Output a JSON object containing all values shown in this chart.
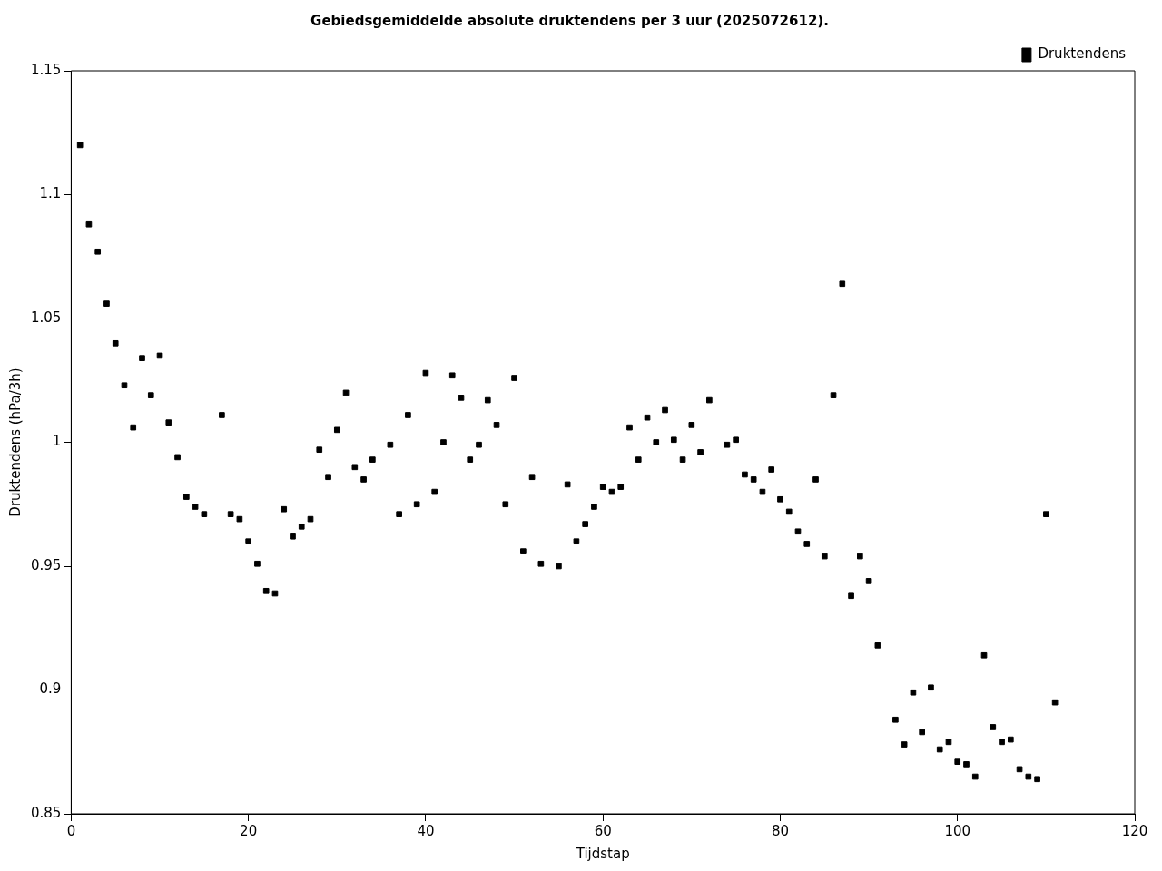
{
  "chart_data": {
    "type": "scatter",
    "title": "Gebiedsgemiddelde absolute druktendens per 3 uur (2025072612).",
    "xlabel": "Tijdstap",
    "ylabel": "Druktendens (hPa/3h)",
    "x": [
      1,
      2,
      3,
      4,
      5,
      6,
      7,
      8,
      9,
      10,
      11,
      12,
      13,
      14,
      15,
      17,
      18,
      19,
      20,
      21,
      22,
      23,
      24,
      25,
      26,
      27,
      28,
      29,
      30,
      31,
      32,
      33,
      34,
      36,
      37,
      38,
      39,
      40,
      41,
      42,
      43,
      44,
      45,
      46,
      47,
      48,
      49,
      50,
      51,
      52,
      53,
      55,
      56,
      57,
      58,
      59,
      60,
      61,
      62,
      63,
      64,
      65,
      66,
      67,
      68,
      69,
      70,
      71,
      72,
      74,
      75,
      76,
      77,
      78,
      79,
      80,
      81,
      82,
      83,
      84,
      85,
      86,
      87,
      88,
      89,
      90,
      91,
      93,
      94,
      95,
      96,
      97,
      98,
      99,
      100,
      101,
      102,
      103,
      104,
      105,
      106,
      107,
      108,
      109,
      110,
      111
    ],
    "series": [
      {
        "name": "Druktendens",
        "color": "#000000",
        "values": [
          1.12,
          1.088,
          1.077,
          1.056,
          1.04,
          1.023,
          1.006,
          1.034,
          1.019,
          1.035,
          1.008,
          0.994,
          0.978,
          0.974,
          0.971,
          1.011,
          0.971,
          0.969,
          0.96,
          0.951,
          0.94,
          0.939,
          0.973,
          0.962,
          0.966,
          0.969,
          0.997,
          0.986,
          1.005,
          1.02,
          0.99,
          0.985,
          0.993,
          0.999,
          0.971,
          1.011,
          0.975,
          1.028,
          0.98,
          1.0,
          1.027,
          1.018,
          0.993,
          0.999,
          1.017,
          1.007,
          0.975,
          1.026,
          0.956,
          0.986,
          0.951,
          0.95,
          0.983,
          0.96,
          0.967,
          0.974,
          0.982,
          0.98,
          0.982,
          1.006,
          0.993,
          1.01,
          1.0,
          1.013,
          1.001,
          0.993,
          1.007,
          0.996,
          1.017,
          0.999,
          1.001,
          0.987,
          0.985,
          0.98,
          0.989,
          0.977,
          0.972,
          0.964,
          0.959,
          0.985,
          0.954,
          1.019,
          1.064,
          0.938,
          0.954,
          0.944,
          0.918,
          0.888,
          0.878,
          0.899,
          0.883,
          0.901,
          0.876,
          0.879,
          0.871,
          0.87,
          0.865,
          0.914,
          0.885,
          0.879,
          0.88,
          0.868,
          0.865,
          0.864,
          0.971,
          0.895
        ]
      }
    ],
    "xlim": [
      0,
      120
    ],
    "xticks": [
      0,
      20,
      40,
      60,
      80,
      100,
      120
    ],
    "ylim": [
      0.85,
      1.15
    ],
    "yticks": [
      0.85,
      0.9,
      0.95,
      1,
      1.05,
      1.1,
      1.15
    ],
    "grid": false,
    "legend": "top right",
    "marker": "square"
  }
}
